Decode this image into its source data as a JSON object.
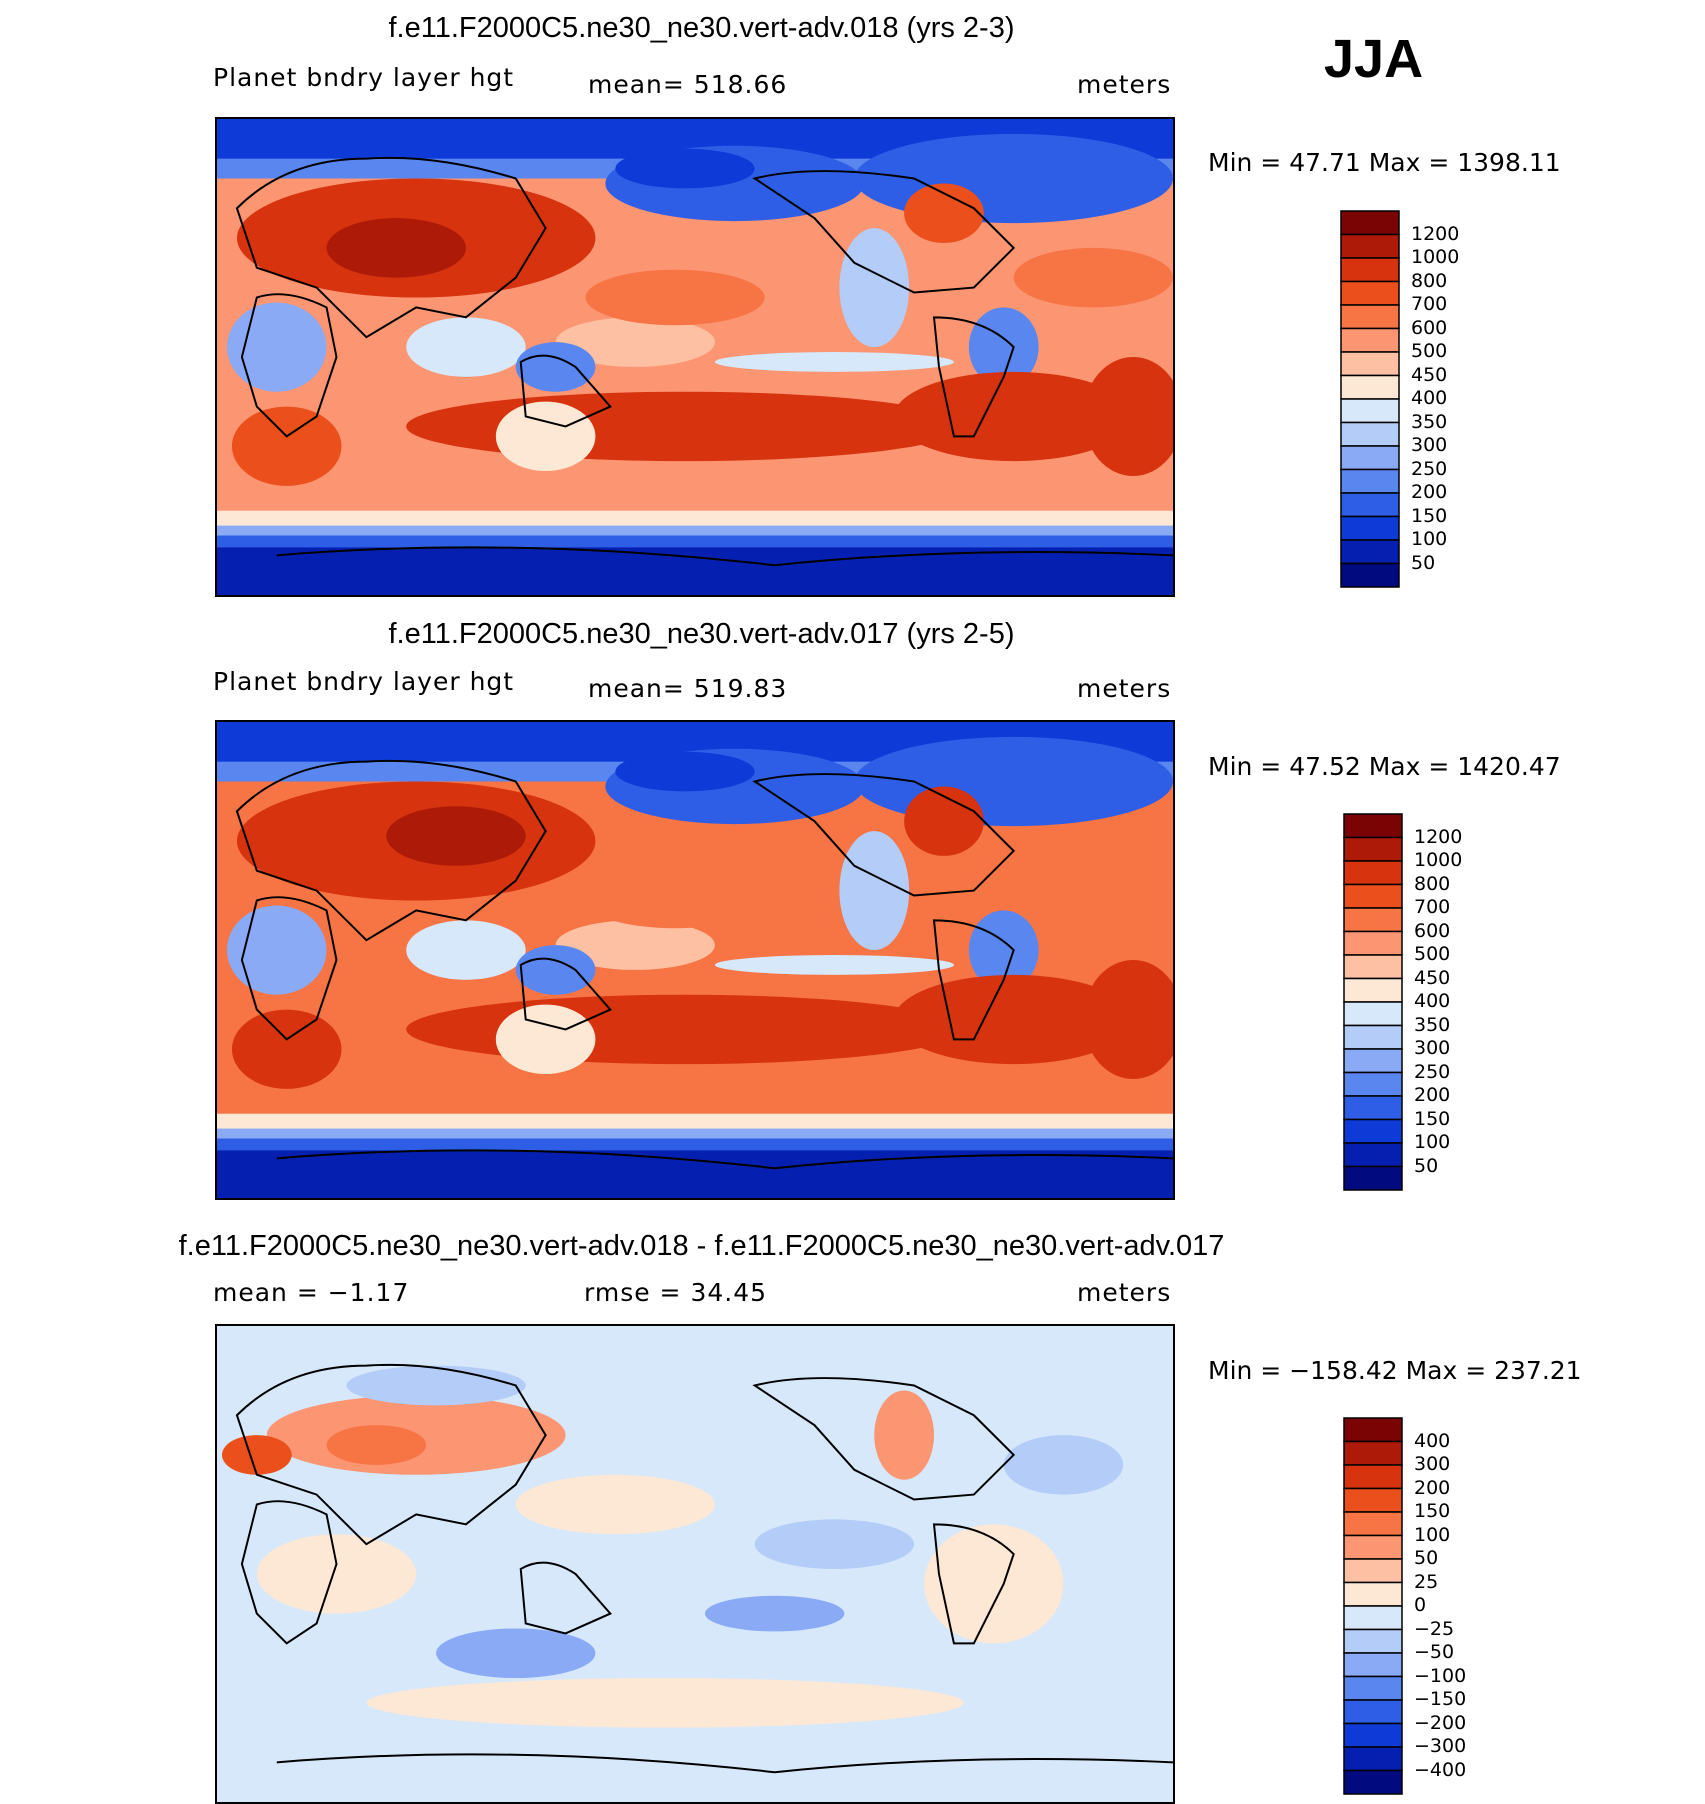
{
  "season": "JJA",
  "panels": [
    {
      "title": "f.e11.F2000C5.ne30_ne30.vert-adv.018 (yrs 2-3)",
      "left_label": "Planet bndry layer hgt",
      "center_label": "mean=  518.66",
      "units": "meters",
      "minmax": "Min =   47.71  Max  =  1398.11",
      "levels": [
        "1200",
        "1000",
        "800",
        "700",
        "600",
        "500",
        "450",
        "400",
        "350",
        "300",
        "250",
        "200",
        "150",
        "100",
        "50"
      ],
      "colors": [
        "#7a0403",
        "#ad1a07",
        "#d6330e",
        "#ea4f1c",
        "#f77445",
        "#fc9572",
        "#fdc0a3",
        "#fde8d6",
        "#d6e8fa",
        "#b3cdf8",
        "#8aaaf5",
        "#5a86ef",
        "#2f5ee6",
        "#0e3bd8",
        "#0520b0",
        "#020a80"
      ]
    },
    {
      "title": "f.e11.F2000C5.ne30_ne30.vert-adv.017 (yrs 2-5)",
      "left_label": "Planet bndry layer hgt",
      "center_label": "mean=  519.83",
      "units": "meters",
      "minmax": "Min =   47.52  Max  =  1420.47",
      "levels": [
        "1200",
        "1000",
        "800",
        "700",
        "600",
        "500",
        "450",
        "400",
        "350",
        "300",
        "250",
        "200",
        "150",
        "100",
        "50"
      ],
      "colors": [
        "#7a0403",
        "#ad1a07",
        "#d6330e",
        "#ea4f1c",
        "#f77445",
        "#fc9572",
        "#fdc0a3",
        "#fde8d6",
        "#d6e8fa",
        "#b3cdf8",
        "#8aaaf5",
        "#5a86ef",
        "#2f5ee6",
        "#0e3bd8",
        "#0520b0",
        "#020a80"
      ]
    },
    {
      "title": "f.e11.F2000C5.ne30_ne30.vert-adv.018 - f.e11.F2000C5.ne30_ne30.vert-adv.017",
      "left_label": "mean =   −1.17",
      "center_label": "rmse =   34.45",
      "units": "meters",
      "minmax": "Min = −158.42  Max  =  237.21",
      "levels": [
        "400",
        "300",
        "200",
        "150",
        "100",
        "50",
        "25",
        "0",
        "−25",
        "−50",
        "−100",
        "−150",
        "−200",
        "−300",
        "−400"
      ],
      "colors": [
        "#7a0403",
        "#ad1a07",
        "#d6330e",
        "#ea4f1c",
        "#f77445",
        "#fc9572",
        "#fdc0a3",
        "#fde8d6",
        "#d6e8fa",
        "#b3cdf8",
        "#8aaaf5",
        "#5a86ef",
        "#2f5ee6",
        "#0e3bd8",
        "#0520b0",
        "#020a80"
      ]
    }
  ]
}
